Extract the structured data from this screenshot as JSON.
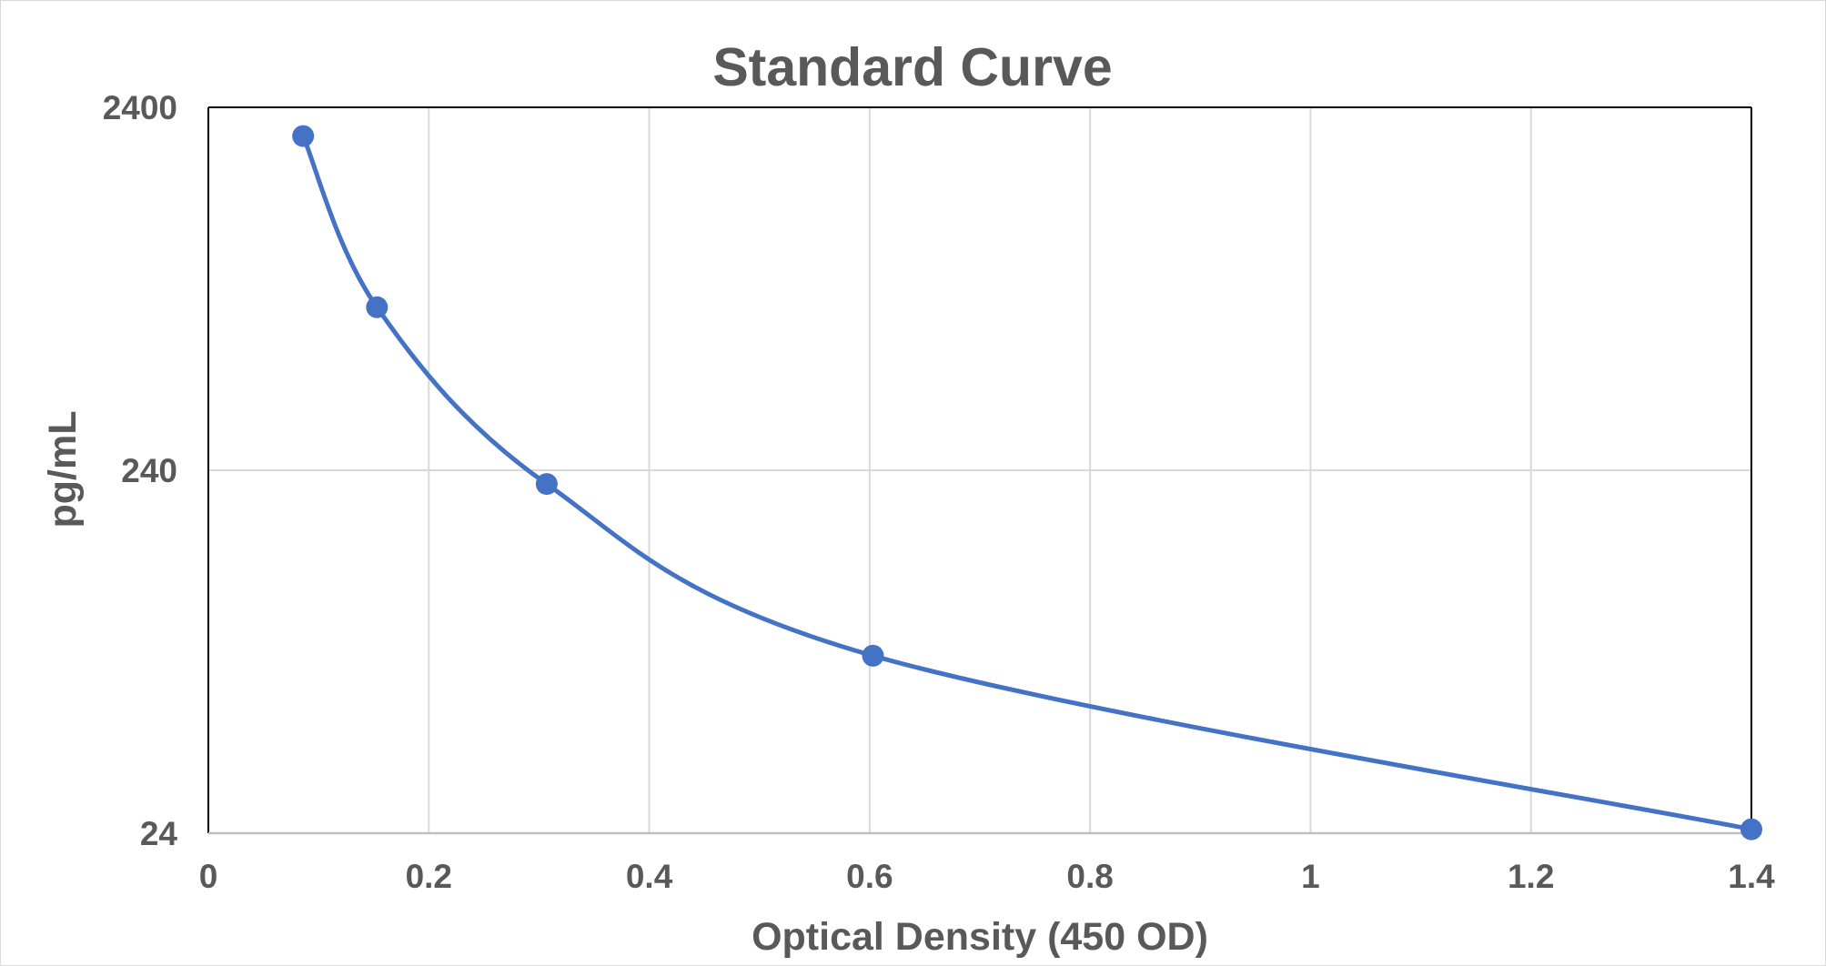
{
  "chart_data": {
    "type": "scatter",
    "title": "Standard Curve",
    "xlabel": "Optical Density (450 OD)",
    "ylabel": "pg/mL",
    "xlim": [
      0,
      1.4
    ],
    "ylim": [
      24,
      2400
    ],
    "y_scale": "log",
    "x_ticks": [
      0,
      0.2,
      0.4,
      0.6,
      0.8,
      1,
      1.2,
      1.4
    ],
    "y_ticks": [
      24,
      240,
      2400
    ],
    "grid": true,
    "legend": "none",
    "line_style": "smoothed",
    "series": [
      {
        "color": "#4472c4",
        "x": [
          0.086,
          0.153,
          0.307,
          0.603,
          1.4
        ],
        "y": [
          2000,
          675,
          220,
          74,
          24.6
        ]
      }
    ]
  }
}
